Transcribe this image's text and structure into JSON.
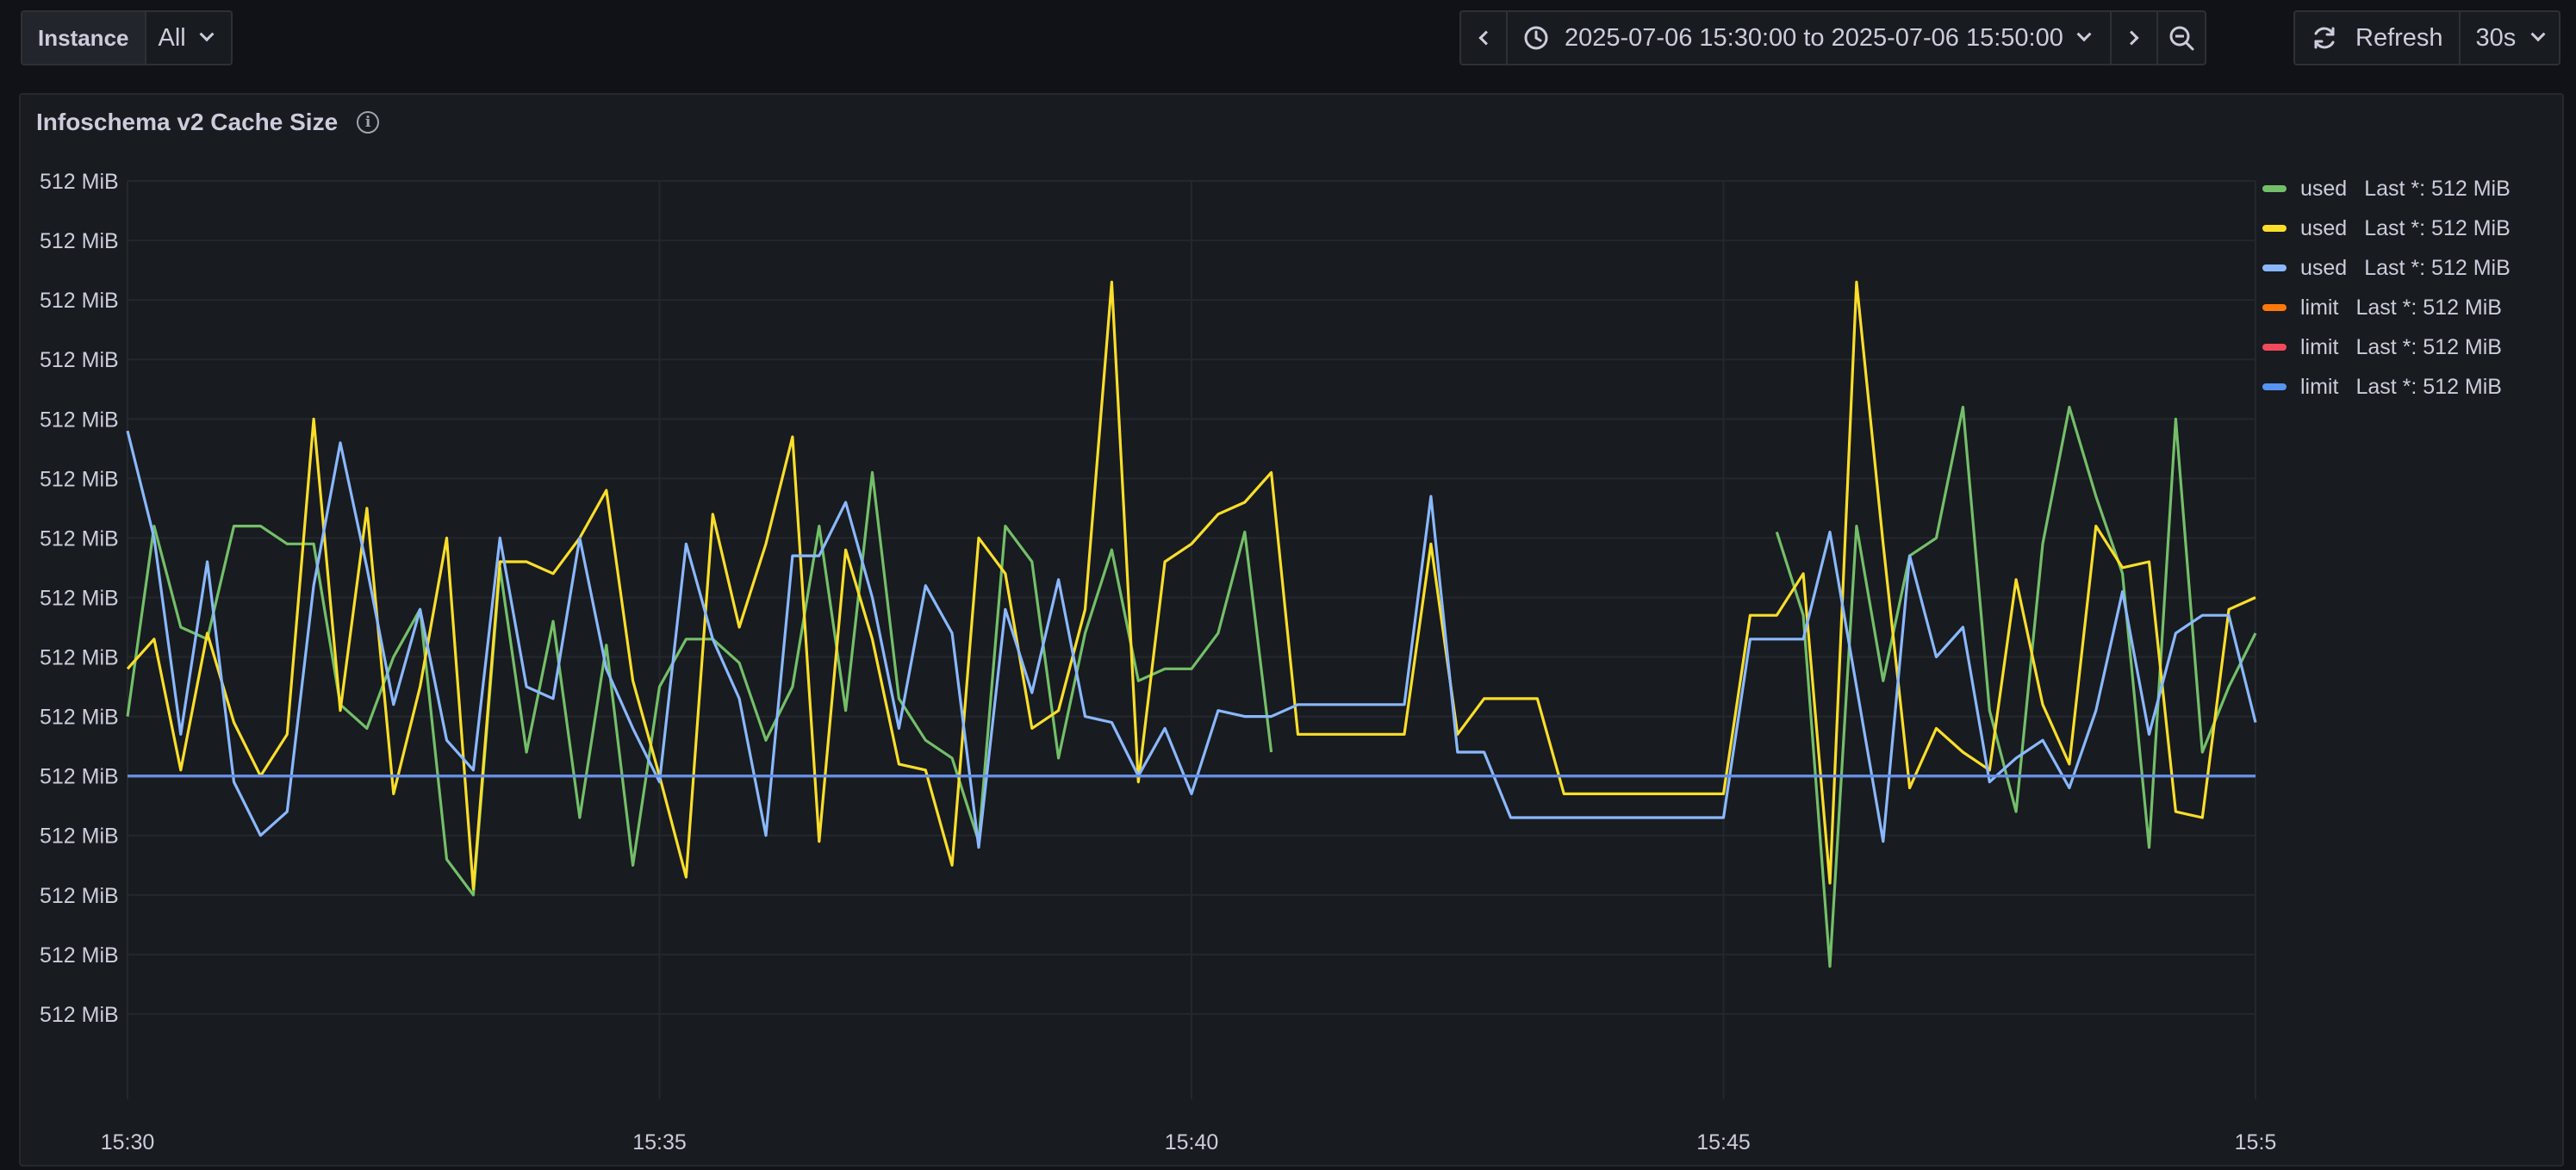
{
  "toolbar": {
    "variable_label": "Instance",
    "variable_value": "All",
    "time_range": "2025-07-06 15:30:00 to 2025-07-06 15:50:00",
    "refresh_label": "Refresh",
    "refresh_interval": "30s"
  },
  "panel": {
    "title": "Infoschema v2 Cache Size",
    "info_icon_glyph": "i"
  },
  "legend": [
    {
      "name": "used",
      "stat": "Last *: 512 MiB",
      "color": "#73bf69"
    },
    {
      "name": "used",
      "stat": "Last *: 512 MiB",
      "color": "#fade2a"
    },
    {
      "name": "used",
      "stat": "Last *: 512 MiB",
      "color": "#8ab8ff"
    },
    {
      "name": "limit",
      "stat": "Last *: 512 MiB",
      "color": "#ff780a"
    },
    {
      "name": "limit",
      "stat": "Last *: 512 MiB",
      "color": "#f2495c"
    },
    {
      "name": "limit",
      "stat": "Last *: 512 MiB",
      "color": "#5794f2"
    }
  ],
  "chart_data": {
    "type": "line",
    "y_tick_labels": [
      "512 MiB",
      "512 MiB",
      "512 MiB",
      "512 MiB",
      "512 MiB",
      "512 MiB",
      "512 MiB",
      "512 MiB",
      "512 MiB",
      "512 MiB",
      "512 MiB",
      "512 MiB",
      "512 MiB",
      "512 MiB",
      "512 MiB"
    ],
    "x_tick_labels": [
      "15:30",
      "15:35",
      "15:40",
      "15:45",
      "15:5"
    ],
    "xlim_minutes": [
      0,
      20
    ],
    "ylim": [
      0,
      15
    ],
    "grid": true,
    "legend_placement": "right",
    "series": [
      {
        "legend_index": 0,
        "segments": [
          [
            [
              0,
              6.0
            ],
            [
              0.25,
              9.2
            ],
            [
              0.5,
              7.5
            ],
            [
              0.75,
              7.3
            ],
            [
              1.0,
              9.2
            ],
            [
              1.25,
              9.2
            ],
            [
              1.5,
              8.9
            ],
            [
              1.75,
              8.9
            ],
            [
              2.0,
              6.2
            ],
            [
              2.25,
              5.8
            ],
            [
              2.5,
              7.0
            ],
            [
              2.75,
              7.8
            ],
            [
              3.0,
              3.6
            ],
            [
              3.25,
              3.0
            ],
            [
              3.5,
              8.5
            ],
            [
              3.75,
              5.4
            ],
            [
              4.0,
              7.6
            ],
            [
              4.25,
              4.3
            ],
            [
              4.5,
              7.2
            ],
            [
              4.75,
              3.5
            ],
            [
              5.0,
              6.5
            ],
            [
              5.25,
              7.3
            ],
            [
              5.5,
              7.3
            ],
            [
              5.75,
              6.9
            ],
            [
              6.0,
              5.6
            ],
            [
              6.25,
              6.5
            ],
            [
              6.5,
              9.2
            ],
            [
              6.75,
              6.1
            ],
            [
              7.0,
              10.1
            ],
            [
              7.25,
              6.3
            ],
            [
              7.5,
              5.6
            ],
            [
              7.75,
              5.3
            ],
            [
              8.0,
              3.9
            ],
            [
              8.25,
              9.2
            ],
            [
              8.5,
              8.6
            ],
            [
              8.75,
              5.3
            ],
            [
              9.0,
              7.4
            ],
            [
              9.25,
              8.8
            ],
            [
              9.5,
              6.6
            ],
            [
              9.75,
              6.8
            ],
            [
              10.0,
              6.8
            ],
            [
              10.25,
              7.4
            ],
            [
              10.5,
              9.1
            ],
            [
              10.75,
              5.4
            ]
          ],
          [
            [
              15.5,
              9.1
            ],
            [
              15.75,
              7.7
            ],
            [
              16.0,
              1.8
            ],
            [
              16.25,
              9.2
            ],
            [
              16.5,
              6.6
            ],
            [
              16.75,
              8.7
            ],
            [
              17.0,
              9.0
            ],
            [
              17.25,
              11.2
            ],
            [
              17.5,
              6.1
            ],
            [
              17.75,
              4.4
            ],
            [
              18.0,
              8.9
            ],
            [
              18.25,
              11.2
            ],
            [
              18.5,
              9.7
            ],
            [
              18.75,
              8.4
            ],
            [
              19.0,
              3.8
            ],
            [
              19.25,
              11.0
            ],
            [
              19.5,
              5.4
            ],
            [
              19.75,
              6.5
            ],
            [
              20.0,
              7.4
            ]
          ]
        ]
      },
      {
        "legend_index": 1,
        "segments": [
          [
            [
              0,
              6.8
            ],
            [
              0.25,
              7.3
            ],
            [
              0.5,
              5.1
            ],
            [
              0.75,
              7.4
            ],
            [
              1.0,
              5.9
            ],
            [
              1.25,
              5.0
            ],
            [
              1.5,
              5.7
            ],
            [
              1.75,
              11.0
            ],
            [
              2.0,
              6.1
            ],
            [
              2.25,
              9.5
            ],
            [
              2.5,
              4.7
            ],
            [
              2.75,
              6.5
            ],
            [
              3.0,
              9.0
            ],
            [
              3.25,
              3.1
            ],
            [
              3.5,
              8.6
            ],
            [
              3.75,
              8.6
            ],
            [
              4.0,
              8.4
            ],
            [
              4.25,
              9.0
            ],
            [
              4.5,
              9.8
            ],
            [
              4.75,
              6.6
            ],
            [
              5.0,
              5.0
            ],
            [
              5.25,
              3.3
            ],
            [
              5.5,
              9.4
            ],
            [
              5.75,
              7.5
            ],
            [
              6.0,
              8.9
            ],
            [
              6.25,
              10.7
            ],
            [
              6.5,
              3.9
            ],
            [
              6.75,
              8.8
            ],
            [
              7.0,
              7.3
            ],
            [
              7.25,
              5.2
            ],
            [
              7.5,
              5.1
            ],
            [
              7.75,
              3.5
            ],
            [
              8.0,
              9.0
            ],
            [
              8.25,
              8.4
            ],
            [
              8.5,
              5.8
            ],
            [
              8.75,
              6.1
            ],
            [
              9.0,
              7.8
            ],
            [
              9.25,
              13.3
            ],
            [
              9.5,
              4.9
            ],
            [
              9.75,
              8.6
            ],
            [
              10.0,
              8.9
            ],
            [
              10.25,
              9.4
            ],
            [
              10.5,
              9.6
            ],
            [
              10.75,
              10.1
            ],
            [
              11.0,
              5.7
            ],
            [
              11.5,
              5.7
            ],
            [
              12.0,
              5.7
            ],
            [
              12.25,
              8.9
            ],
            [
              12.5,
              5.7
            ],
            [
              12.75,
              6.3
            ],
            [
              13.0,
              6.3
            ],
            [
              13.25,
              6.3
            ],
            [
              13.5,
              4.7
            ],
            [
              14.0,
              4.7
            ],
            [
              14.5,
              4.7
            ],
            [
              15.0,
              4.7
            ],
            [
              15.25,
              7.7
            ],
            [
              15.5,
              7.7
            ],
            [
              15.75,
              8.4
            ],
            [
              16.0,
              3.2
            ],
            [
              16.25,
              13.3
            ],
            [
              16.5,
              8.9
            ],
            [
              16.75,
              4.8
            ],
            [
              17.0,
              5.8
            ],
            [
              17.25,
              5.4
            ],
            [
              17.5,
              5.1
            ],
            [
              17.75,
              8.3
            ],
            [
              18.0,
              6.2
            ],
            [
              18.25,
              5.2
            ],
            [
              18.5,
              9.2
            ],
            [
              18.75,
              8.5
            ],
            [
              19.0,
              8.6
            ],
            [
              19.25,
              4.4
            ],
            [
              19.5,
              4.3
            ],
            [
              19.75,
              7.8
            ],
            [
              20.0,
              8.0
            ]
          ]
        ]
      },
      {
        "legend_index": 2,
        "segments": [
          [
            [
              0,
              10.8
            ],
            [
              0.25,
              9.0
            ],
            [
              0.5,
              5.7
            ],
            [
              0.75,
              8.6
            ],
            [
              1.0,
              4.9
            ],
            [
              1.25,
              4.0
            ],
            [
              1.5,
              4.4
            ],
            [
              1.75,
              8.2
            ],
            [
              2.0,
              10.6
            ],
            [
              2.25,
              8.5
            ],
            [
              2.5,
              6.2
            ],
            [
              2.75,
              7.8
            ],
            [
              3.0,
              5.6
            ],
            [
              3.25,
              5.1
            ],
            [
              3.5,
              9.0
            ],
            [
              3.75,
              6.5
            ],
            [
              4.0,
              6.3
            ],
            [
              4.25,
              9.0
            ],
            [
              4.5,
              6.8
            ],
            [
              4.75,
              5.8
            ],
            [
              5.0,
              4.9
            ],
            [
              5.25,
              8.9
            ],
            [
              5.5,
              7.3
            ],
            [
              5.75,
              6.3
            ],
            [
              6.0,
              4.0
            ],
            [
              6.25,
              8.7
            ],
            [
              6.5,
              8.7
            ],
            [
              6.75,
              9.6
            ],
            [
              7.0,
              8.0
            ],
            [
              7.25,
              5.8
            ],
            [
              7.5,
              8.2
            ],
            [
              7.75,
              7.4
            ],
            [
              8.0,
              3.8
            ],
            [
              8.25,
              7.8
            ],
            [
              8.5,
              6.4
            ],
            [
              8.75,
              8.3
            ],
            [
              9.0,
              6.0
            ],
            [
              9.25,
              5.9
            ],
            [
              9.5,
              5.0
            ],
            [
              9.75,
              5.8
            ],
            [
              10.0,
              4.7
            ],
            [
              10.25,
              6.1
            ],
            [
              10.5,
              6.0
            ],
            [
              10.75,
              6.0
            ],
            [
              11.0,
              6.2
            ],
            [
              11.5,
              6.2
            ],
            [
              12.0,
              6.2
            ],
            [
              12.25,
              9.7
            ],
            [
              12.5,
              5.4
            ],
            [
              12.75,
              5.4
            ],
            [
              13.0,
              4.3
            ],
            [
              13.5,
              4.3
            ],
            [
              14.0,
              4.3
            ],
            [
              14.5,
              4.3
            ],
            [
              15.0,
              4.3
            ],
            [
              15.25,
              7.3
            ],
            [
              15.5,
              7.3
            ],
            [
              15.75,
              7.3
            ],
            [
              16.0,
              9.1
            ],
            [
              16.25,
              6.5
            ],
            [
              16.5,
              3.9
            ],
            [
              16.75,
              8.7
            ],
            [
              17.0,
              7.0
            ],
            [
              17.25,
              7.5
            ],
            [
              17.5,
              4.9
            ],
            [
              17.75,
              5.3
            ],
            [
              18.0,
              5.6
            ],
            [
              18.25,
              4.8
            ],
            [
              18.5,
              6.1
            ],
            [
              18.75,
              8.1
            ],
            [
              19.0,
              5.7
            ],
            [
              19.25,
              7.4
            ],
            [
              19.5,
              7.7
            ],
            [
              19.75,
              7.7
            ],
            [
              20.0,
              5.9
            ]
          ]
        ]
      },
      {
        "legend_index": 3,
        "segments": [
          [
            [
              0,
              5.0
            ],
            [
              20,
              5.0
            ]
          ]
        ]
      },
      {
        "legend_index": 4,
        "segments": [
          [
            [
              0,
              5.0
            ],
            [
              20,
              5.0
            ]
          ]
        ]
      },
      {
        "legend_index": 5,
        "segments": [
          [
            [
              0,
              5.0
            ],
            [
              20,
              5.0
            ]
          ]
        ]
      }
    ]
  }
}
